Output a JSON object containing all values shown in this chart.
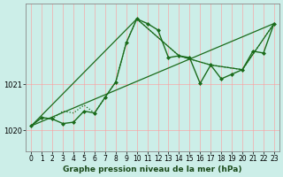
{
  "title": "",
  "xlabel": "Graphe pression niveau de la mer (hPa)",
  "bg_color": "#cceee8",
  "grid_color": "#ff9999",
  "line_color": "#1a6b1a",
  "ylim": [
    1019.55,
    1022.75
  ],
  "xlim": [
    -0.5,
    23.5
  ],
  "yticks": [
    1020,
    1021
  ],
  "xticks": [
    0,
    1,
    2,
    3,
    4,
    5,
    6,
    7,
    8,
    9,
    10,
    11,
    12,
    13,
    14,
    15,
    16,
    17,
    18,
    19,
    20,
    21,
    22,
    23
  ],
  "series0_x": [
    0,
    1,
    2,
    3,
    4,
    5,
    6,
    7,
    8,
    9,
    10,
    11,
    12,
    13,
    14,
    15,
    16,
    17,
    18,
    19,
    20,
    21,
    22,
    23
  ],
  "series0_y": [
    1020.1,
    1020.28,
    1020.25,
    1020.15,
    1020.18,
    1020.42,
    1020.38,
    1020.72,
    1021.05,
    1021.9,
    1022.42,
    1022.32,
    1022.18,
    1021.58,
    1021.62,
    1021.58,
    1021.02,
    1021.42,
    1021.12,
    1021.22,
    1021.32,
    1021.72,
    1021.68,
    1022.32
  ],
  "series1_x": [
    0,
    1,
    2,
    3,
    4,
    5,
    6,
    7,
    8,
    9,
    10,
    14,
    17,
    20,
    23
  ],
  "series1_y": [
    1020.1,
    1020.28,
    1020.25,
    1020.42,
    1020.38,
    1020.55,
    1020.38,
    1020.72,
    1021.05,
    1021.9,
    1022.42,
    1021.62,
    1021.42,
    1021.32,
    1022.32
  ],
  "series2_x": [
    0,
    10,
    14,
    17,
    20,
    23
  ],
  "series2_y": [
    1020.1,
    1022.42,
    1021.62,
    1021.42,
    1021.32,
    1022.32
  ],
  "series3_x": [
    0,
    23
  ],
  "series3_y": [
    1020.1,
    1022.32
  ],
  "xlabel_fontsize": 6.5,
  "tick_fontsize": 5.5
}
